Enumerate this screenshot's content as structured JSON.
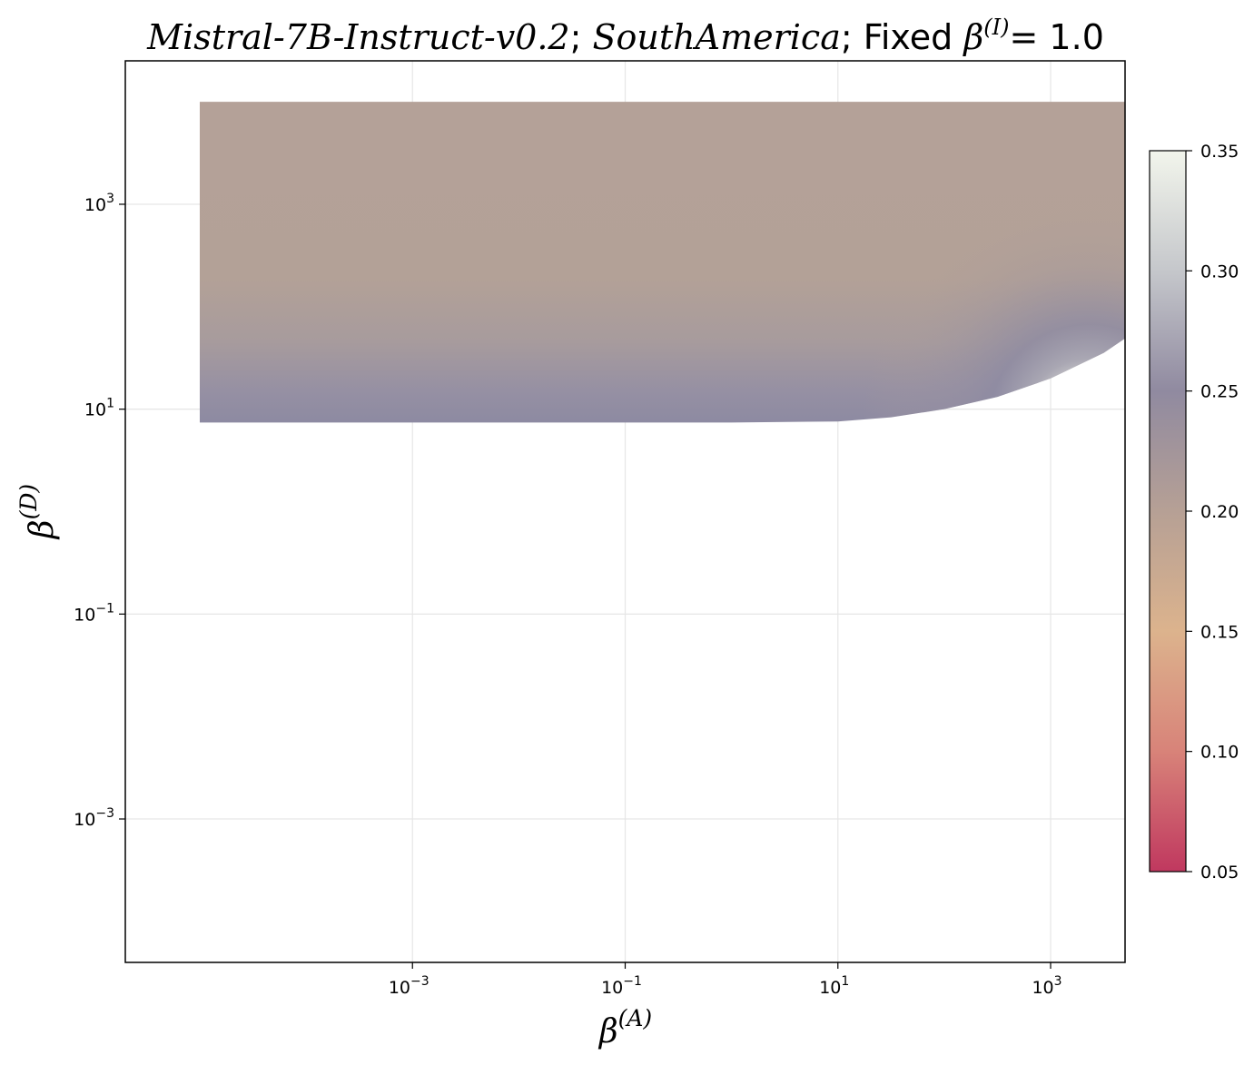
{
  "chart_data": {
    "type": "heatmap",
    "title": {
      "model": "Mistral-7B-Instruct-v0.2",
      "region": "SouthAmerica",
      "fixed_prefix": "Fixed",
      "fixed_symbol": "β",
      "fixed_superscript": "(I)",
      "fixed_value": "= 1.0"
    },
    "xlabel": {
      "symbol": "β",
      "superscript": "(A)"
    },
    "ylabel": {
      "symbol": "β",
      "superscript": "(D)"
    },
    "x_scale": "log",
    "y_scale": "log",
    "xlim_log10": [
      -5.7,
      3.7
    ],
    "ylim_log10": [
      -4.4,
      4.4
    ],
    "x_ticks": [
      {
        "exp": -3,
        "base": "10",
        "label": "−3"
      },
      {
        "exp": -1,
        "base": "10",
        "label": "−1"
      },
      {
        "exp": 1,
        "base": "10",
        "label": "1"
      },
      {
        "exp": 3,
        "base": "10",
        "label": "3"
      }
    ],
    "y_ticks": [
      {
        "exp": 3,
        "base": "10",
        "label": "3"
      },
      {
        "exp": 1,
        "base": "10",
        "label": "1"
      },
      {
        "exp": -1,
        "base": "10",
        "label": "−1"
      },
      {
        "exp": -3,
        "base": "10",
        "label": "−3"
      }
    ],
    "grid": true,
    "data_region": {
      "x_log10_range": [
        -5,
        4
      ],
      "y_log10_top": 4,
      "y_log10_boundary": [
        [
          -5,
          0.87
        ],
        [
          0,
          0.87
        ],
        [
          1,
          0.88
        ],
        [
          1.5,
          0.92
        ],
        [
          2,
          1.0
        ],
        [
          2.5,
          1.12
        ],
        [
          3,
          1.3
        ],
        [
          3.5,
          1.55
        ],
        [
          4,
          1.9
        ]
      ],
      "note_value_rows": [
        {
          "y_log10": 4.0,
          "value": 0.21
        },
        {
          "y_log10": 3.0,
          "value": 0.21
        },
        {
          "y_log10": 2.0,
          "value": 0.215
        },
        {
          "y_log10": 1.5,
          "value": 0.23
        },
        {
          "y_log10": 1.0,
          "value": 0.245
        }
      ]
    },
    "colorbar": {
      "min": 0.05,
      "max": 0.35,
      "ticks": [
        "0.05",
        "0.10",
        "0.15",
        "0.20",
        "0.25",
        "0.30",
        "0.35"
      ],
      "colors": [
        "#c0385f",
        "#d88379",
        "#dcb38d",
        "#b6a095",
        "#908aa0",
        "#c5c7cb",
        "#f2f5ec"
      ]
    }
  }
}
